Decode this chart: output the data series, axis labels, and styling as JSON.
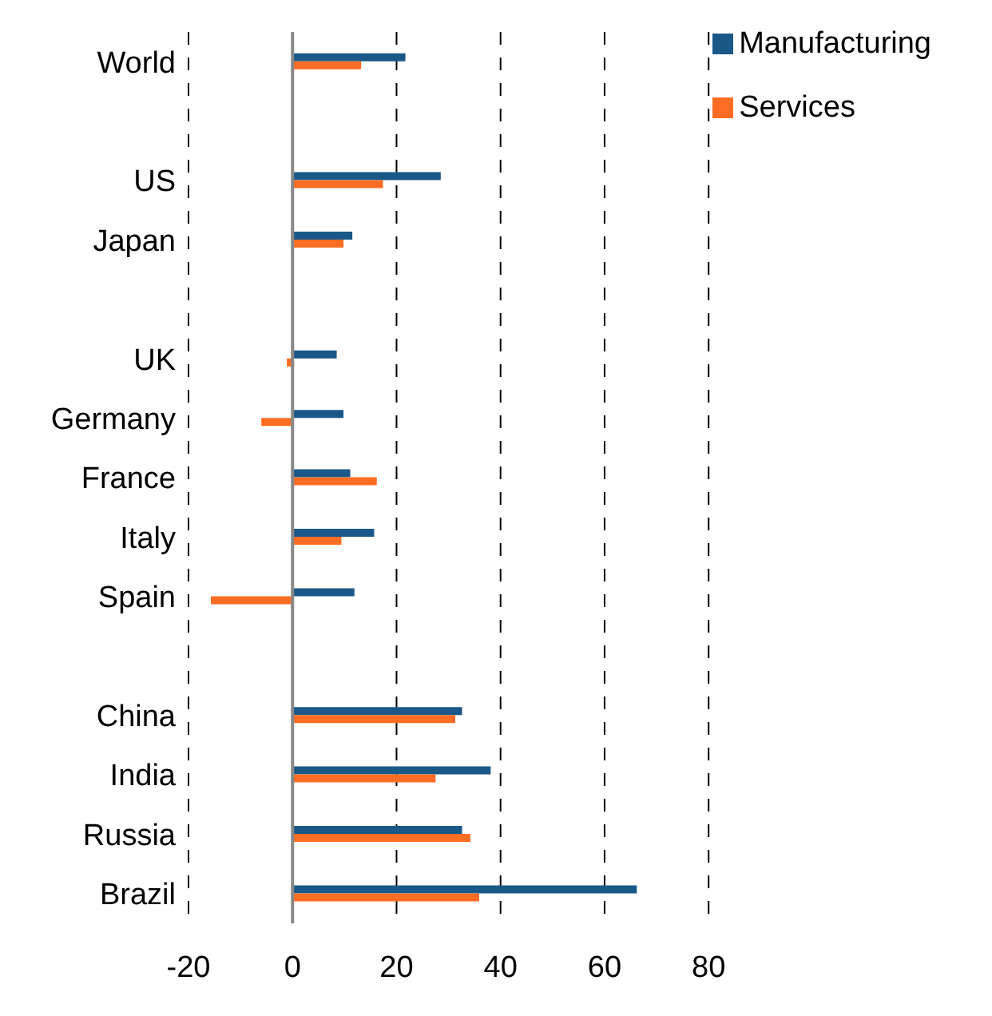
{
  "chart_data": {
    "type": "bar",
    "orientation": "horizontal",
    "categories": [
      "World",
      null,
      "US",
      "Japan",
      null,
      "UK",
      "Germany",
      "France",
      "Italy",
      "Spain",
      null,
      "China",
      "India",
      "Russia",
      "Brazil"
    ],
    "series": [
      {
        "name": "Manufacturing",
        "color": "#1a5888",
        "values": [
          21.7,
          null,
          28.5,
          11.5,
          null,
          8.5,
          9.8,
          11.1,
          15.7,
          11.9,
          null,
          32.6,
          38.1,
          32.6,
          66.2
        ]
      },
      {
        "name": "Services",
        "color": "#ff6d24",
        "values": [
          13.2,
          null,
          17.4,
          9.8,
          null,
          -1.1,
          -6.0,
          16.2,
          9.4,
          -15.7,
          null,
          31.3,
          27.5,
          34.2,
          35.9
        ]
      }
    ],
    "xlim": [
      -20,
      80
    ],
    "xticks": [
      -20,
      0,
      20,
      40,
      60,
      80
    ],
    "grid": "x",
    "legend": "top right"
  }
}
